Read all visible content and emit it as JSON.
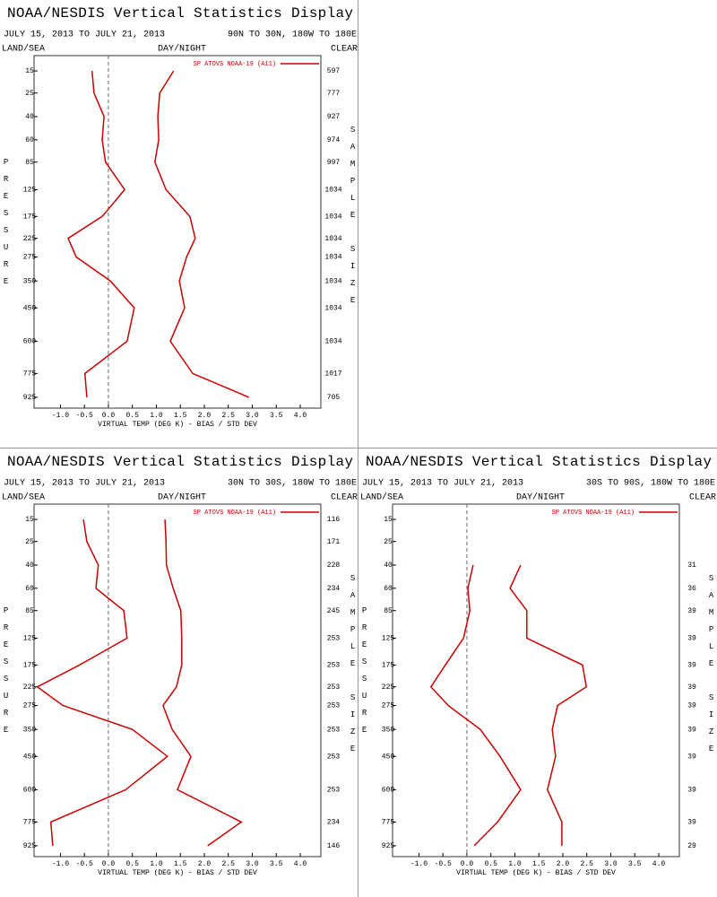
{
  "chart_data": [
    {
      "type": "line",
      "title": "NOAA/NESDIS Vertical Statistics Display",
      "date_range": "JULY 15, 2013 TO JULY 21, 2013",
      "region": "90N TO 30N, 180W TO 180E",
      "land_sea": "LAND/SEA",
      "day_night": "DAY/NIGHT",
      "clear": "CLEAR",
      "ylabel": "PRESSURE",
      "y2label": "SAMPLE SIZE",
      "xlabel": "VIRTUAL TEMP (DEG K) - BIAS / STD DEV",
      "xlim": [
        -1.55,
        4.43
      ],
      "xticks": [
        {
          "value": -1,
          "label": "-1.0"
        },
        -0.5,
        {
          "value": 0,
          "label": "0.0"
        },
        0.5,
        {
          "value": 1,
          "label": "1.0"
        },
        1.5,
        {
          "value": 2,
          "label": "2.0"
        },
        2.5,
        {
          "value": 3,
          "label": "3.0"
        },
        3.5,
        {
          "value": 4,
          "label": "4.0"
        }
      ],
      "ylim": [
        10,
        1000
      ],
      "yticks": [
        15,
        25,
        40,
        60,
        85,
        125,
        175,
        225,
        275,
        350,
        450,
        600,
        775,
        925
      ],
      "series": [
        {
          "name": "SP ATOVS NOAA-19 (A11)",
          "color": "#cc0000",
          "values": [
            -0.34,
            -0.3,
            -0.09,
            -0.13,
            -0.06,
            0.34,
            -0.13,
            -0.84,
            -0.67,
            0.04,
            0.54,
            0.39,
            -0.49,
            -0.45
          ]
        },
        {
          "color": "#cc0000",
          "values": [
            1.36,
            1.07,
            1.03,
            1.05,
            0.97,
            1.2,
            1.7,
            1.81,
            1.63,
            1.48,
            1.59,
            1.29,
            1.76,
            2.93
          ]
        }
      ],
      "sample_size": [
        597,
        777,
        927,
        974,
        997,
        1034,
        1034,
        1034,
        1034,
        1034,
        1034,
        1034,
        1017,
        705
      ]
    },
    {
      "type": "line",
      "title": "NOAA/NESDIS Vertical Statistics Display",
      "date_range": "JULY 15, 2013 TO JULY 21, 2013",
      "region": "30N TO 30S, 180W TO 180E",
      "land_sea": "LAND/SEA",
      "day_night": "DAY/NIGHT",
      "clear": "CLEAR",
      "ylabel": "PRESSURE",
      "y2label": "SAMPLE SIZE",
      "xlabel": "VIRTUAL TEMP (DEG K) - BIAS / STD DEV",
      "xlim": [
        -1.55,
        4.43
      ],
      "xticks": [
        {
          "value": -1,
          "label": "-1.0"
        },
        -0.5,
        {
          "value": 0,
          "label": "0.0"
        },
        0.5,
        {
          "value": 1,
          "label": "1.0"
        },
        1.5,
        {
          "value": 2,
          "label": "2.0"
        },
        2.5,
        {
          "value": 3,
          "label": "3.0"
        },
        3.5,
        {
          "value": 4,
          "label": "4.0"
        }
      ],
      "ylim": [
        10,
        1000
      ],
      "yticks": [
        15,
        25,
        40,
        60,
        85,
        125,
        175,
        225,
        275,
        350,
        450,
        600,
        775,
        925
      ],
      "series": [
        {
          "name": "SP ATOVS NOAA-19 (A11)",
          "color": "#cc0000",
          "values": [
            -0.52,
            -0.45,
            -0.21,
            -0.26,
            0.32,
            0.39,
            -0.6,
            -1.48,
            -0.95,
            0.5,
            1.23,
            0.36,
            -1.2,
            -1.16
          ]
        },
        {
          "color": "#cc0000",
          "values": [
            1.18,
            1.2,
            1.21,
            1.35,
            1.51,
            1.53,
            1.53,
            1.42,
            1.14,
            1.33,
            1.72,
            1.44,
            2.77,
            2.07
          ]
        }
      ],
      "sample_size": [
        116,
        171,
        228,
        234,
        245,
        253,
        253,
        253,
        253,
        253,
        253,
        253,
        234,
        146
      ]
    },
    {
      "type": "line",
      "title": "NOAA/NESDIS Vertical Statistics Display",
      "date_range": "JULY 15, 2013 TO JULY 21, 2013",
      "region": "30S TO 90S, 180W TO 180E",
      "land_sea": "LAND/SEA",
      "day_night": "DAY/NIGHT",
      "clear": "CLEAR",
      "ylabel": "PRESSURE",
      "y2label": "SAMPLE SIZE",
      "xlabel": "VIRTUAL TEMP (DEG K) - BIAS / STD DEV",
      "xlim": [
        -1.55,
        4.43
      ],
      "xticks": [
        {
          "value": -1,
          "label": "-1.0"
        },
        -0.5,
        {
          "value": 0,
          "label": "0.0"
        },
        0.5,
        {
          "value": 1,
          "label": "1.0"
        },
        1.5,
        {
          "value": 2,
          "label": "2.0"
        },
        2.5,
        {
          "value": 3,
          "label": "3.0"
        },
        3.5,
        {
          "value": 4,
          "label": "4.0"
        }
      ],
      "ylim": [
        10,
        1000
      ],
      "yticks": [
        15,
        25,
        40,
        60,
        85,
        125,
        175,
        225,
        275,
        350,
        450,
        600,
        775,
        925
      ],
      "series": [
        {
          "name": "SP ATOVS NOAA-19 (A11)",
          "color": "#cc0000",
          "values": [
            null,
            null,
            0.13,
            0.02,
            0.06,
            -0.07,
            -0.45,
            -0.75,
            -0.39,
            0.28,
            0.69,
            1.12,
            0.64,
            0.15
          ]
        },
        {
          "color": "#cc0000",
          "values": [
            null,
            null,
            1.12,
            0.9,
            1.25,
            1.25,
            2.41,
            2.49,
            1.89,
            1.78,
            1.85,
            1.68,
            1.98,
            1.98
          ]
        }
      ],
      "sample_size": [
        null,
        null,
        31,
        36,
        39,
        39,
        39,
        39,
        39,
        39,
        39,
        39,
        39,
        29
      ]
    }
  ]
}
